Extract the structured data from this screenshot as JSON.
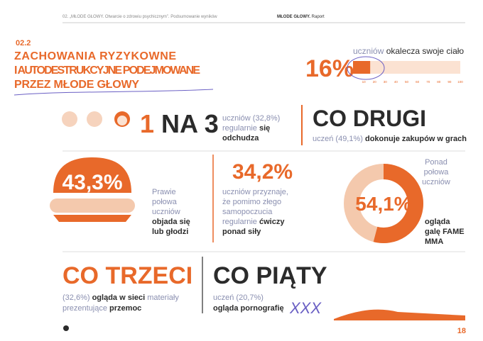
{
  "header": {
    "left": "02. „MŁODE GŁOWY. Otwarcie o zdrowiu psychicznym”. Podsumowanie wyników",
    "brand": "MŁODE GŁOWY.",
    "right": "Raport"
  },
  "section": {
    "number": "02.2",
    "title_lines": [
      "ZACHOWANIA RYZYKOWNE",
      "I AUTODESTRUKCYJNE PODEJMOWANE",
      "PRZEZ MŁODE GŁOWY"
    ]
  },
  "self_harm": {
    "label": "16%",
    "value": 16,
    "text_light": "uczniów",
    "text_bold": "okalecza swoje ciało",
    "xlim": [
      0,
      100
    ],
    "xticks": [
      10,
      20,
      30,
      40,
      50,
      60,
      70,
      80,
      90,
      100
    ]
  },
  "dieting": {
    "big_number": "1",
    "big_rest": "NA 3",
    "lines": [
      [
        "uczniów (32,8%)"
      ],
      [
        "regularnie ",
        "się"
      ],
      [
        "odchudza"
      ]
    ]
  },
  "games": {
    "big": "CO DRUGI",
    "light": "uczeń (49,1%) ",
    "bold": "dokonuje zakupów w grach"
  },
  "eating": {
    "label": "43,3%",
    "lines_light": [
      "Prawie",
      "połowa",
      "uczniów"
    ],
    "lines_bold": [
      "objada się",
      "lub głodzi"
    ]
  },
  "exercise": {
    "label": "34,2%",
    "lines_light": [
      "uczniów przyznaje,",
      "że pomimo złego",
      "samopoczucia",
      "regularnie "
    ],
    "bold_inline": "ćwiczy",
    "bold_last": "ponad siły"
  },
  "fame": {
    "label": "54,1%",
    "value": 54.1,
    "range": [
      0,
      100
    ],
    "lines_light": [
      "Ponad",
      "połowa",
      "uczniów"
    ],
    "lines_bold": [
      "ogląda",
      "galę FAME",
      "MMA"
    ]
  },
  "violence": {
    "big": "CO TRZECI",
    "light1": "(32,6%) ",
    "bold1": "ogląda w sieci",
    "light2": " materiały",
    "light3": "prezentujące ",
    "bold3": "przemoc"
  },
  "porn": {
    "big": "CO PIĄTY",
    "light": "uczeń (20,7%)",
    "bold": "ogląda pornografię",
    "scribble": "XXX"
  },
  "page_number": "18"
}
